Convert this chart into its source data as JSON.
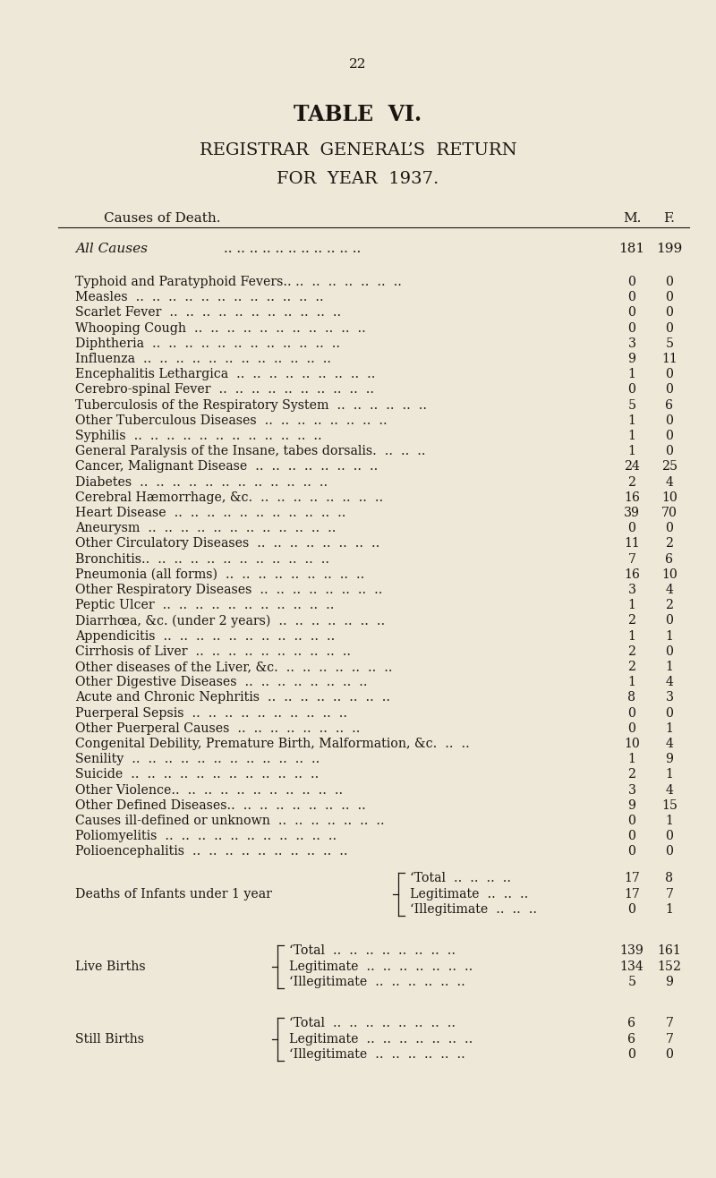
{
  "page_number": "22",
  "title1": "TABLE  VI.",
  "title2": "REGISTRAR  GENERAL’S  RETURN",
  "title3": "FOR  YEAR  1937.",
  "col_header_cause": "Causes of Death.",
  "col_header_m": "M.",
  "col_header_f": "F.",
  "background_color": "#ede8d8",
  "text_color": "#1a1510",
  "all_causes_label": "All Causes",
  "all_causes_dots": ".. .. .. .. .. .. .. .. .. .. ..",
  "all_causes_m": "181",
  "all_causes_f": "199",
  "rows": [
    {
      "label": "Typhoid and Paratyphoid Fevers.. ..  ..  ..  ..  ..  ..  ..",
      "m": "0",
      "f": "0"
    },
    {
      "label": "Measles  ..  ..  ..  ..  ..  ..  ..  ..  ..  ..  ..  ..",
      "m": "0",
      "f": "0"
    },
    {
      "label": "Scarlet Fever  ..  ..  ..  ..  ..  ..  ..  ..  ..  ..  ..",
      "m": "0",
      "f": "0"
    },
    {
      "label": "Whooping Cough  ..  ..  ..  ..  ..  ..  ..  ..  ..  ..  ..",
      "m": "0",
      "f": "0"
    },
    {
      "label": "Diphtheria  ..  ..  ..  ..  ..  ..  ..  ..  ..  ..  ..  ..",
      "m": "3",
      "f": "5"
    },
    {
      "label": "Influenza  ..  ..  ..  ..  ..  ..  ..  ..  ..  ..  ..  ..",
      "m": "9",
      "f": "11"
    },
    {
      "label": "Encephalitis Lethargica  ..  ..  ..  ..  ..  ..  ..  ..  ..",
      "m": "1",
      "f": "0"
    },
    {
      "label": "Cerebro-spinal Fever  ..  ..  ..  ..  ..  ..  ..  ..  ..  ..",
      "m": "0",
      "f": "0"
    },
    {
      "label": "Tuberculosis of the Respiratory System  ..  ..  ..  ..  ..  ..",
      "m": "5",
      "f": "6"
    },
    {
      "label": "Other Tuberculous Diseases  ..  ..  ..  ..  ..  ..  ..  ..",
      "m": "1",
      "f": "0"
    },
    {
      "label": "Syphilis  ..  ..  ..  ..  ..  ..  ..  ..  ..  ..  ..  ..",
      "m": "1",
      "f": "0"
    },
    {
      "label": "General Paralysis of the Insane, tabes dorsalis.  ..  ..  ..",
      "m": "1",
      "f": "0"
    },
    {
      "label": "Cancer, Malignant Disease  ..  ..  ..  ..  ..  ..  ..  ..",
      "m": "24",
      "f": "25"
    },
    {
      "label": "Diabetes  ..  ..  ..  ..  ..  ..  ..  ..  ..  ..  ..  ..",
      "m": "2",
      "f": "4"
    },
    {
      "label": "Cerebral Hæmorrhage, &c.  ..  ..  ..  ..  ..  ..  ..  ..",
      "m": "16",
      "f": "10"
    },
    {
      "label": "Heart Disease  ..  ..  ..  ..  ..  ..  ..  ..  ..  ..  ..",
      "m": "39",
      "f": "70"
    },
    {
      "label": "Aneurysm  ..  ..  ..  ..  ..  ..  ..  ..  ..  ..  ..  ..",
      "m": "0",
      "f": "0"
    },
    {
      "label": "Other Circulatory Diseases  ..  ..  ..  ..  ..  ..  ..  ..",
      "m": "11",
      "f": "2"
    },
    {
      "label": "Bronchitis..  ..  ..  ..  ..  ..  ..  ..  ..  ..  ..  ..",
      "m": "7",
      "f": "6"
    },
    {
      "label": "Pneumonia (all forms)  ..  ..  ..  ..  ..  ..  ..  ..  ..",
      "m": "16",
      "f": "10"
    },
    {
      "label": "Other Respiratory Diseases  ..  ..  ..  ..  ..  ..  ..  ..",
      "m": "3",
      "f": "4"
    },
    {
      "label": "Peptic Ulcer  ..  ..  ..  ..  ..  ..  ..  ..  ..  ..  ..",
      "m": "1",
      "f": "2"
    },
    {
      "label": "Diarrhœa, &c. (under 2 years)  ..  ..  ..  ..  ..  ..  ..",
      "m": "2",
      "f": "0"
    },
    {
      "label": "Appendicitis  ..  ..  ..  ..  ..  ..  ..  ..  ..  ..  ..",
      "m": "1",
      "f": "1"
    },
    {
      "label": "Cirrhosis of Liver  ..  ..  ..  ..  ..  ..  ..  ..  ..  ..",
      "m": "2",
      "f": "0"
    },
    {
      "label": "Other diseases of the Liver, &c.  ..  ..  ..  ..  ..  ..  ..",
      "m": "2",
      "f": "1"
    },
    {
      "label": "Other Digestive Diseases  ..  ..  ..  ..  ..  ..  ..  ..",
      "m": "1",
      "f": "4"
    },
    {
      "label": "Acute and Chronic Nephritis  ..  ..  ..  ..  ..  ..  ..  ..",
      "m": "8",
      "f": "3"
    },
    {
      "label": "Puerperal Sepsis  ..  ..  ..  ..  ..  ..  ..  ..  ..  ..",
      "m": "0",
      "f": "0"
    },
    {
      "label": "Other Puerperal Causes  ..  ..  ..  ..  ..  ..  ..  ..",
      "m": "0",
      "f": "1"
    },
    {
      "label": "Congenital Debility, Premature Birth, Malformation, &c.  ..  ..",
      "m": "10",
      "f": "4"
    },
    {
      "label": "Senility  ..  ..  ..  ..  ..  ..  ..  ..  ..  ..  ..  ..",
      "m": "1",
      "f": "9"
    },
    {
      "label": "Suicide  ..  ..  ..  ..  ..  ..  ..  ..  ..  ..  ..  ..",
      "m": "2",
      "f": "1"
    },
    {
      "label": "Other Violence..  ..  ..  ..  ..  ..  ..  ..  ..  ..  ..",
      "m": "3",
      "f": "4"
    },
    {
      "label": "Other Defined Diseases..  ..  ..  ..  ..  ..  ..  ..  ..",
      "m": "9",
      "f": "15"
    },
    {
      "label": "Causes ill-defined or unknown  ..  ..  ..  ..  ..  ..  ..",
      "m": "0",
      "f": "1"
    },
    {
      "label": "Poliomyelitis  ..  ..  ..  ..  ..  ..  ..  ..  ..  ..  ..",
      "m": "0",
      "f": "0"
    },
    {
      "label": "Polioencephalitis  ..  ..  ..  ..  ..  ..  ..  ..  ..  ..",
      "m": "0",
      "f": "0"
    }
  ],
  "infant_deaths_label": "Deaths of Infants under 1 year",
  "infant_total_m": "17",
  "infant_total_f": "8",
  "infant_legit_m": "17",
  "infant_legit_f": "7",
  "infant_illegit_m": "0",
  "infant_illegit_f": "1",
  "live_births_label": "Live Births",
  "live_total_m": "139",
  "live_total_f": "161",
  "live_legit_m": "134",
  "live_legit_f": "152",
  "live_illegit_m": "5",
  "live_illegit_f": "9",
  "still_births_label": "Still Births",
  "still_total_m": "6",
  "still_total_f": "7",
  "still_legit_m": "6",
  "still_legit_f": "7",
  "still_illegit_m": "0",
  "still_illegit_f": "0"
}
